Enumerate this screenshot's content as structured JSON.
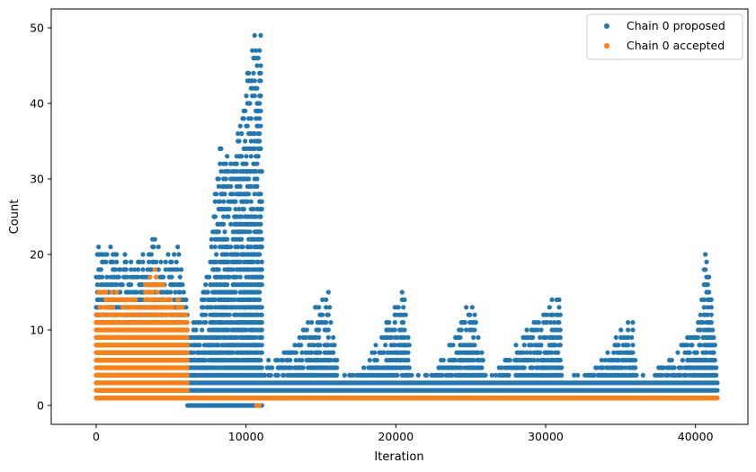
{
  "chart_data": {
    "type": "scatter",
    "xlabel": "Iteration",
    "ylabel": "Count",
    "xlim": [
      -3000,
      43500
    ],
    "ylim": [
      -2.5,
      52.5
    ],
    "xticks": [
      0,
      10000,
      20000,
      30000,
      40000
    ],
    "xtick_labels": [
      "0",
      "10000",
      "20000",
      "30000",
      "40000"
    ],
    "yticks": [
      0,
      10,
      20,
      30,
      40,
      50
    ],
    "ytick_labels": [
      "0",
      "10",
      "20",
      "30",
      "40",
      "50"
    ],
    "grid": false,
    "legend_position": "top-right",
    "series": [
      {
        "name": "Chain 0 proposed",
        "color": "#1f77b4",
        "bands": [
          {
            "x": [
              0,
              6100
            ],
            "ymin": 1,
            "ymax": 10,
            "maxcurve": [
              [
                0,
                21
              ],
              [
                700,
                21
              ],
              [
                1600,
                20
              ],
              [
                2700,
                19
              ],
              [
                3300,
                20
              ],
              [
                3900,
                22
              ],
              [
                4500,
                19
              ],
              [
                5300,
                22
              ],
              [
                6100,
                14
              ]
            ]
          },
          {
            "x": [
              6100,
              11100
            ],
            "ymin": 0,
            "ymax": 4,
            "maxcurve": [
              [
                6100,
                8
              ],
              [
                7200,
                15
              ],
              [
                8200,
                34
              ],
              [
                9000,
                32
              ],
              [
                9500,
                36
              ],
              [
                10200,
                45
              ],
              [
                10700,
                50
              ],
              [
                11000,
                50
              ],
              [
                11100,
                20
              ]
            ]
          },
          {
            "x": [
              11100,
              16100
            ],
            "ymin": 1,
            "ymax": 3,
            "maxcurve": [
              [
                11100,
                5
              ],
              [
                13000,
                8
              ],
              [
                15500,
                15
              ],
              [
                16100,
                6
              ]
            ]
          },
          {
            "x": [
              16100,
              21100
            ],
            "ymin": 1,
            "ymax": 3,
            "maxcurve": [
              [
                16100,
                3
              ],
              [
                18000,
                5
              ],
              [
                20500,
                15
              ],
              [
                21100,
                5
              ]
            ]
          },
          {
            "x": [
              21100,
              26100
            ],
            "ymin": 1,
            "ymax": 3,
            "maxcurve": [
              [
                21100,
                3
              ],
              [
                23200,
                6
              ],
              [
                25000,
                14
              ],
              [
                26100,
                5
              ]
            ]
          },
          {
            "x": [
              26100,
              31100
            ],
            "ymin": 1,
            "ymax": 3,
            "maxcurve": [
              [
                26100,
                3
              ],
              [
                28500,
                9
              ],
              [
                31000,
                15
              ],
              [
                31100,
                4
              ]
            ]
          },
          {
            "x": [
              31100,
              36100
            ],
            "ymin": 1,
            "ymax": 3,
            "maxcurve": [
              [
                31100,
                3
              ],
              [
                33500,
                5
              ],
              [
                35800,
                12
              ],
              [
                36100,
                3
              ]
            ]
          },
          {
            "x": [
              36100,
              41500
            ],
            "ymin": 1,
            "ymax": 3,
            "maxcurve": [
              [
                36100,
                3
              ],
              [
                38500,
                6
              ],
              [
                40300,
                11
              ],
              [
                40700,
                22
              ],
              [
                41000,
                15
              ],
              [
                41500,
                4
              ]
            ]
          }
        ]
      },
      {
        "name": "Chain 0 accepted",
        "color": "#ff7f0e",
        "bands": [
          {
            "x": [
              0,
              6100
            ],
            "ymin": 1,
            "ymax": 10,
            "maxcurve": [
              [
                0,
                15
              ],
              [
                3000,
                14
              ],
              [
                3900,
                19
              ],
              [
                4200,
                16
              ],
              [
                6100,
                13
              ]
            ]
          },
          {
            "x": [
              6100,
              41500
            ],
            "ymin": 1,
            "ymax": 1,
            "maxcurve": [
              [
                6100,
                1
              ],
              [
                41500,
                1
              ]
            ]
          }
        ],
        "extra_points": [
          [
            10700,
            0
          ],
          [
            10850,
            0
          ],
          [
            10900,
            0
          ]
        ]
      }
    ]
  }
}
